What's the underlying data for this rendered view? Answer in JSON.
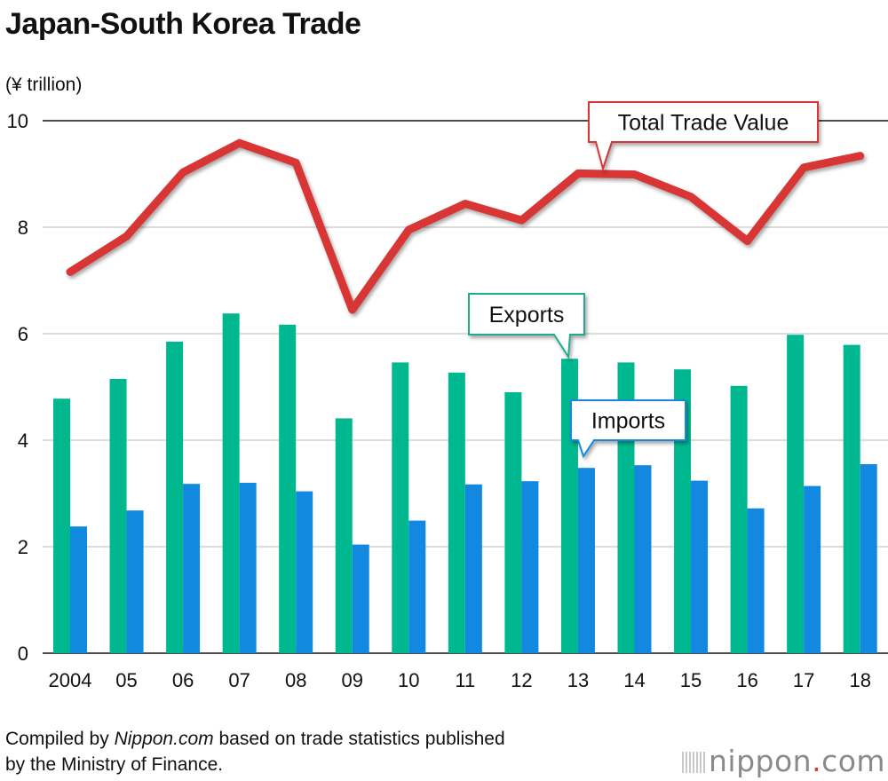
{
  "title": "Japan-South Korea Trade",
  "unit": "(¥ trillion)",
  "footer": {
    "pre": "Compiled by ",
    "italic": "Nippon.com",
    "line1_post": " based on trade statistics published",
    "line2": "by the Ministry of Finance."
  },
  "logo": {
    "name": "nippon",
    "dot": ".",
    "suffix": "com"
  },
  "colors": {
    "total": "#d83535",
    "exports": "#00b890",
    "imports": "#1288e0",
    "exports_callout": "#1fae8c",
    "imports_callout": "#1288e0"
  },
  "chart_data": {
    "type": "bar",
    "categories": [
      "2004",
      "05",
      "06",
      "07",
      "08",
      "09",
      "10",
      "11",
      "12",
      "13",
      "14",
      "15",
      "16",
      "17",
      "18"
    ],
    "series": [
      {
        "name": "Exports",
        "type": "bar",
        "values": [
          4.78,
          5.15,
          5.85,
          6.38,
          6.17,
          4.41,
          5.46,
          5.27,
          4.9,
          5.53,
          5.46,
          5.33,
          5.02,
          5.98,
          5.79
        ]
      },
      {
        "name": "Imports",
        "type": "bar",
        "values": [
          2.38,
          2.68,
          3.18,
          3.2,
          3.04,
          2.04,
          2.49,
          3.17,
          3.23,
          3.48,
          3.53,
          3.24,
          2.72,
          3.14,
          3.55
        ]
      },
      {
        "name": "Total Trade Value",
        "type": "line",
        "values": [
          7.16,
          7.83,
          9.03,
          9.58,
          9.21,
          6.45,
          7.95,
          8.44,
          8.13,
          9.01,
          8.99,
          8.57,
          7.74,
          9.12,
          9.34
        ]
      }
    ],
    "yticks": [
      "0",
      "2",
      "4",
      "6",
      "8",
      "10"
    ],
    "ylim": [
      0,
      10
    ],
    "grid": true,
    "xlabel": "",
    "ylabel": "(¥ trillion)"
  }
}
